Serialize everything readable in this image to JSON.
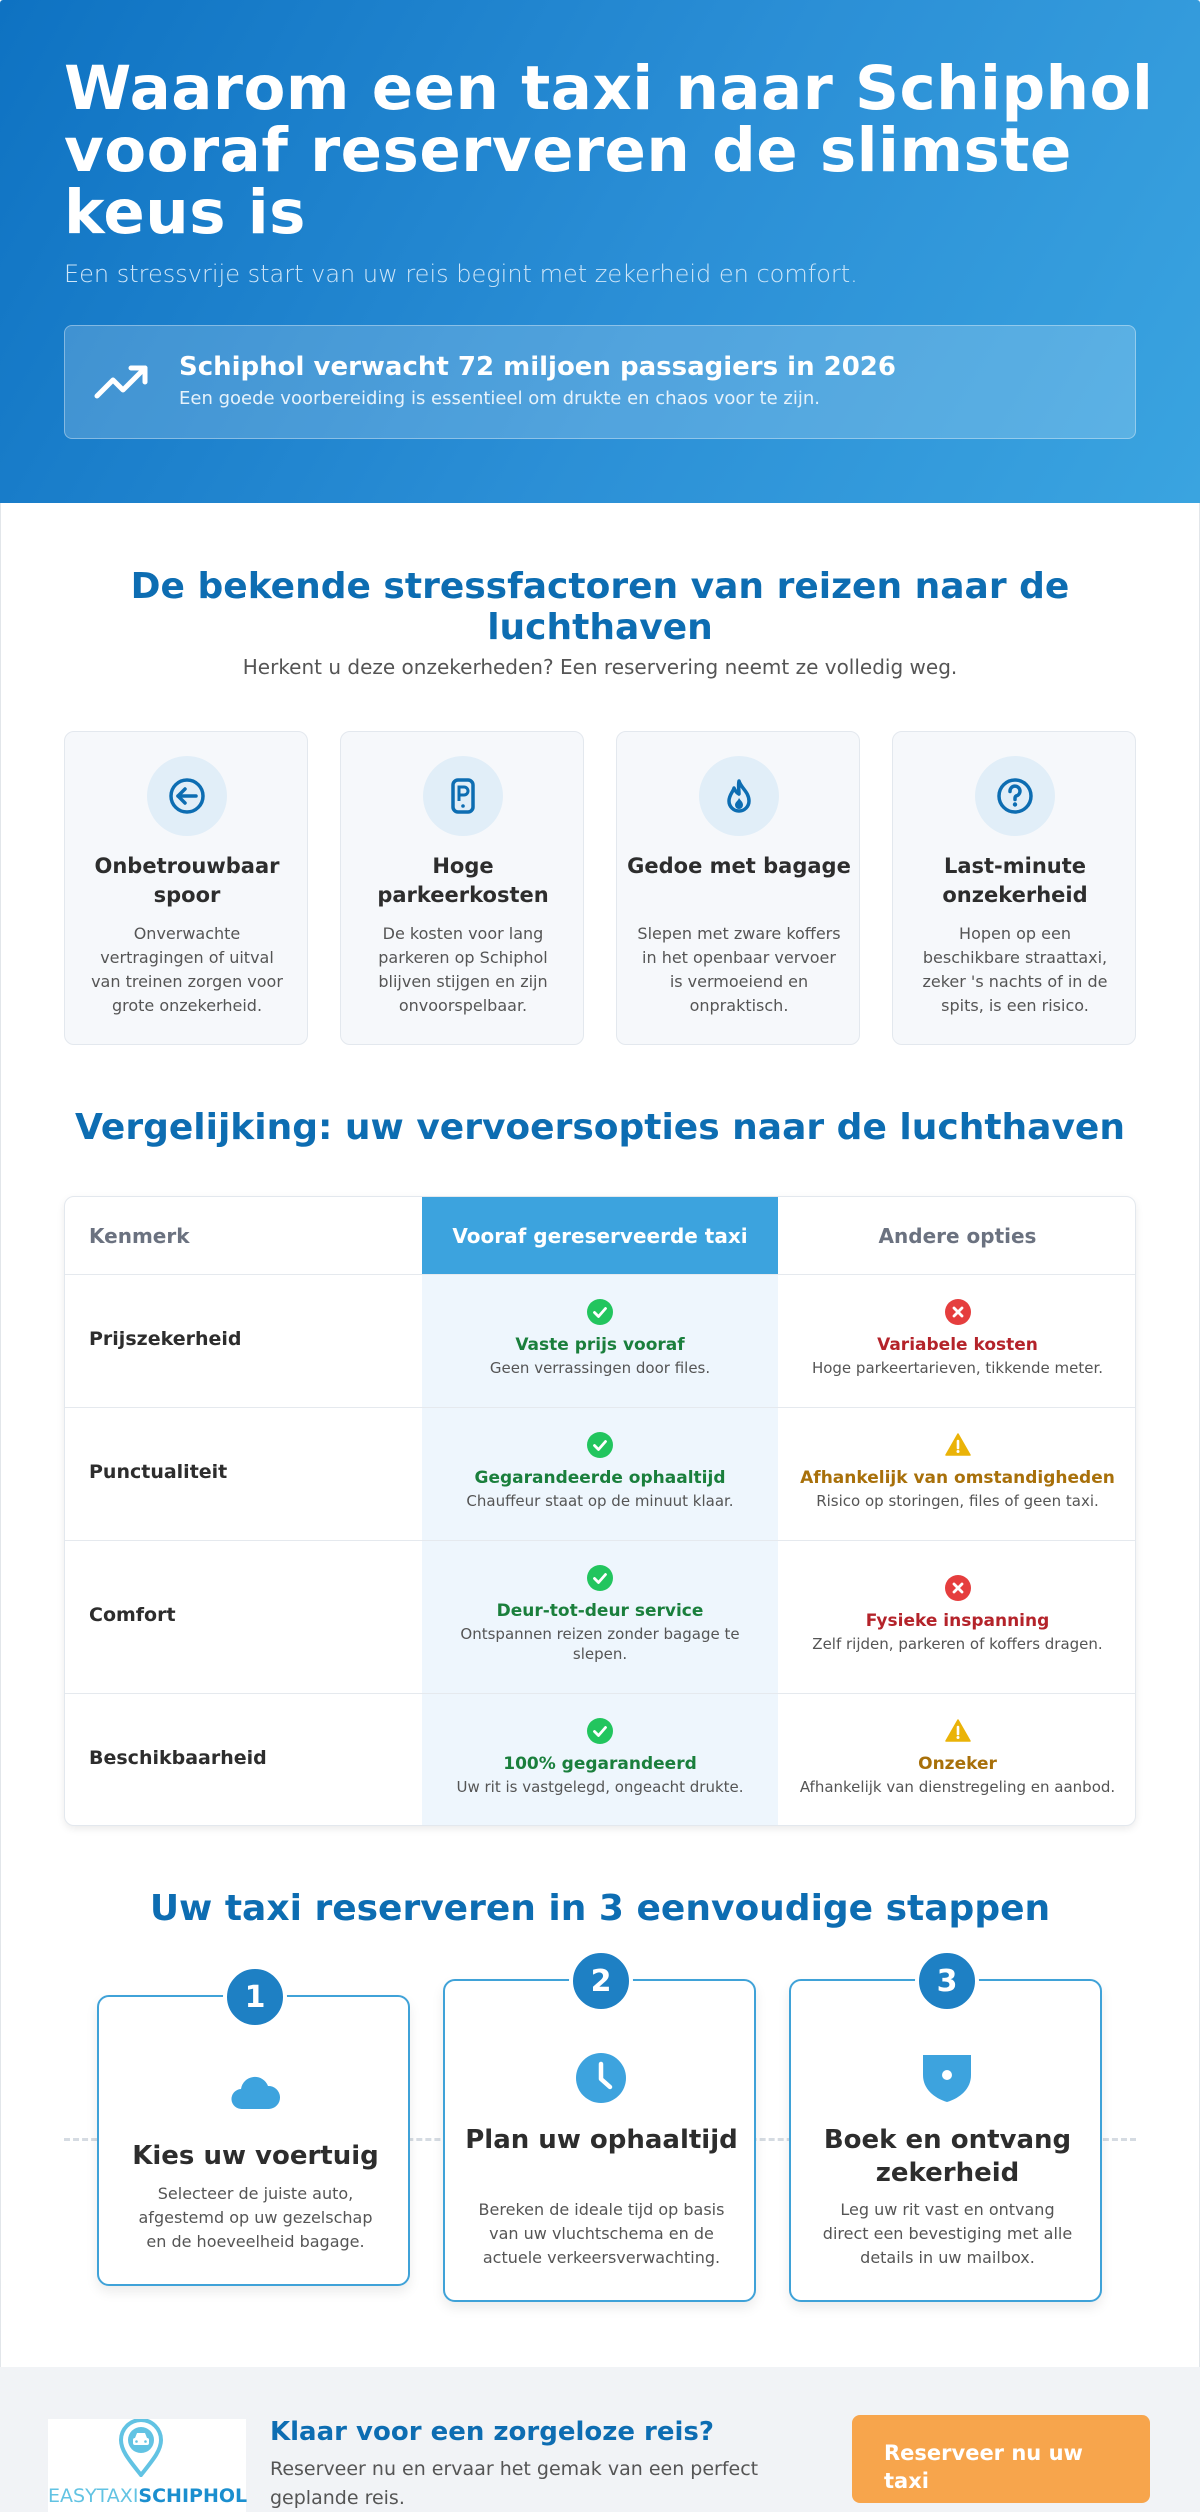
{
  "hero": {
    "title": "Waarom een taxi naar Schiphol vooraf reserveren de slimste keus is",
    "subtitle": "Een stressvrije start van uw reis begint met zekerheid en comfort.",
    "stat_icon": "trending-up-icon",
    "stat_title": "Schiphol verwacht 72 miljoen passagiers in 2026",
    "stat_desc": "Een goede voorbereiding is essentieel om drukte en chaos voor te zijn."
  },
  "stress": {
    "title": "De bekende stressfactoren van reizen naar de luchthaven",
    "subtitle": "Herkent u deze onzekerheden? Een reservering neemt ze volledig weg.",
    "cards": [
      {
        "icon": "arrow-left-circle-icon",
        "title": "Onbetrouwbaar spoor",
        "desc": "Onverwachte vertragingen of uitval van treinen zorgen voor grote onzekerheid."
      },
      {
        "icon": "parking-meter-icon",
        "title": "Hoge parkeerkosten",
        "desc": "De kosten voor lang parkeren op Schiphol blijven stijgen en zijn onvoorspelbaar."
      },
      {
        "icon": "flame-icon",
        "title": "Gedoe met bagage",
        "desc": "Slepen met zware koffers in het openbaar vervoer is vermoeiend en onpraktisch."
      },
      {
        "icon": "question-circle-icon",
        "title": "Last-minute onzekerheid",
        "desc": "Hopen op een beschikbare straattaxi, zeker 's nachts of in de spits, is een risico."
      }
    ]
  },
  "comparison": {
    "title": "Vergelijking: uw vervoersopties naar de luchthaven",
    "headers": {
      "feature": "Kenmerk",
      "taxi": "Vooraf gereserveerde taxi",
      "other": "Andere opties"
    },
    "rows": [
      {
        "label": "Prijszekerheid",
        "taxi": {
          "status": "good",
          "title": "Vaste prijs vooraf",
          "desc": "Geen verrassingen door files."
        },
        "other": {
          "status": "bad",
          "title": "Variabele kosten",
          "desc": "Hoge parkeertarieven, tikkende meter."
        }
      },
      {
        "label": "Punctualiteit",
        "taxi": {
          "status": "good",
          "title": "Gegarandeerde ophaaltijd",
          "desc": "Chauffeur staat op de minuut klaar."
        },
        "other": {
          "status": "warn",
          "title": "Afhankelijk van omstandigheden",
          "desc": "Risico op storingen, files of geen taxi."
        }
      },
      {
        "label": "Comfort",
        "taxi": {
          "status": "good",
          "title": "Deur-tot-deur service",
          "desc": "Ontspannen reizen zonder bagage te slepen."
        },
        "other": {
          "status": "bad",
          "title": "Fysieke inspanning",
          "desc": "Zelf rijden, parkeren of koffers dragen."
        }
      },
      {
        "label": "Beschikbaarheid",
        "taxi": {
          "status": "good",
          "title": "100% gegarandeerd",
          "desc": "Uw rit is vastgelegd, ongeacht drukte."
        },
        "other": {
          "status": "warn",
          "title": "Onzeker",
          "desc": "Afhankelijk van dienstregeling en aanbod."
        }
      }
    ]
  },
  "steps": {
    "title": "Uw taxi reserveren in 3 eenvoudige stappen",
    "items": [
      {
        "num": "1",
        "icon": "cloud-icon",
        "title": "Kies uw voertuig",
        "desc": "Selecteer de juiste auto, afgestemd op uw gezelschap en de hoeveelheid bagage."
      },
      {
        "num": "2",
        "icon": "clock-icon",
        "title": "Plan uw ophaaltijd",
        "desc": "Bereken de ideale tijd op basis van uw vluchtschema en de actuele verkeersverwachting."
      },
      {
        "num": "3",
        "icon": "shield-icon",
        "title": "Boek en ontvang zekerheid",
        "desc": "Leg uw rit vast en ontvang direct een bevestiging met alle details in uw mailbox."
      }
    ]
  },
  "footer": {
    "logo_part1": "EASYTAXI",
    "logo_part2": "SCHIPHOL",
    "cta_title": "Klaar voor een zorgeloze reis?",
    "cta_desc": "Reserveer nu en ervaar het gemak van een perfect geplande reis.",
    "button_label": "Reserveer nu uw taxi"
  },
  "colors": {
    "primary": "#0d6db2",
    "accent": "#3ca3de",
    "cta": "#f7a54c",
    "good": "#22c55e",
    "bad": "#e53e3e",
    "warn": "#eab308"
  }
}
